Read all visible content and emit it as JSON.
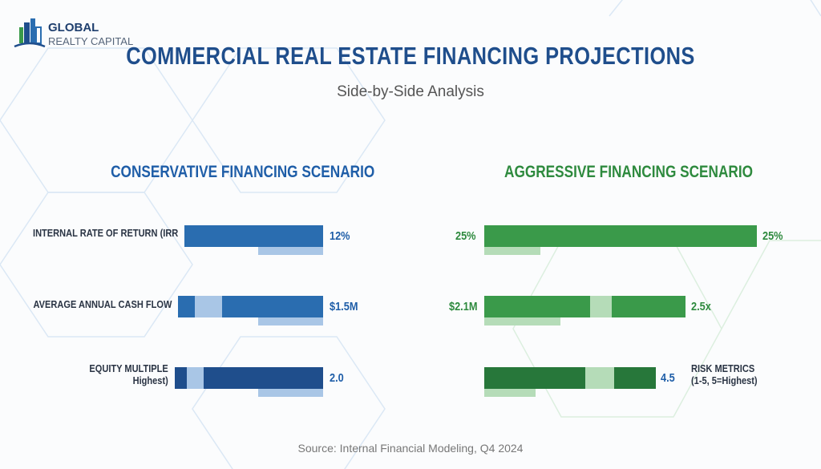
{
  "logo": {
    "line1": "GLOBAL",
    "line2": "REALTY CAPITAL"
  },
  "title": "COMMERCIAL REAL ESTATE FINANCING PROJECTIONS",
  "subtitle": "Side-by-Side Analysis",
  "source": "Source: Internal Financial Modeling, Q4 2024",
  "colors": {
    "navy": "#1f4e8c",
    "blue": "#2a6db0",
    "light_blue": "#a9c6e6",
    "green": "#3a9a4a",
    "dark_green": "#27773a",
    "light_green": "#b5dcb8"
  },
  "chart_data": [
    {
      "type": "bar",
      "title": "CONSERVATIVE FINANCING SCENARIO",
      "categories": [
        "INTERNAL RATE OF RETURN (IRR",
        "AVERAGE ANNUAL CASH FLOW",
        "EQUITY MULTIPLE Highest)"
      ],
      "category_lines": [
        [
          "INTERNAL RATE OF RETURN (IRR"
        ],
        [
          "AVERAGE ANNUAL CASH FLOW"
        ],
        [
          "EQUITY MULTIPLE",
          "Highest)"
        ]
      ],
      "value_labels": [
        "12%",
        "$1.5M",
        "2.0"
      ]
    },
    {
      "type": "bar",
      "title": "AGGRESSIVE FINANCING SCENARIO",
      "left_labels": [
        "25%",
        "$2.1M",
        ""
      ],
      "value_labels": [
        "25%",
        "2.5x",
        "4.5"
      ],
      "extra_label": [
        "RISK METRICS",
        "(1-5, 5=Highest)"
      ]
    }
  ]
}
